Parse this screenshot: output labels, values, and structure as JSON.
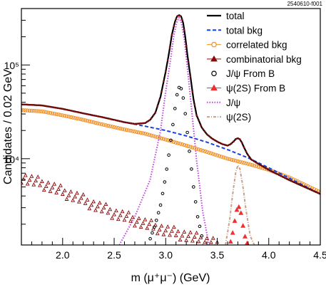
{
  "figure_code": "2540610-f001",
  "chart_data": {
    "type": "line",
    "xlabel": "m (μ⁺μ⁻) (GeV)",
    "ylabel": "Candidates / 0.02 GeV",
    "xlim": [
      1.6,
      4.5
    ],
    "ylim": [
      1200,
      400000
    ],
    "y_scale": "log",
    "x_ticks": [
      2.0,
      2.5,
      3.0,
      3.5,
      4.0,
      4.5
    ],
    "x_tick_labels": [
      "2.0",
      "2.5",
      "3.0",
      "3.5",
      "4.0",
      "4.5"
    ],
    "y_ticks": [
      10000,
      100000
    ],
    "y_tick_labels": [
      "10⁴",
      "10⁵"
    ],
    "legend_position": "top-right",
    "colors": {
      "total": "#000000",
      "total_bkg": "#1a3fe0",
      "correlated_bkg": "#f08c1e",
      "combinatorial_bkg": "#8b0a0a",
      "jpsi_from_b": "#000000",
      "psi2s_from_b": "#f03030",
      "jpsi": "#c040e0",
      "psi2s": "#c8a088"
    },
    "series": [
      {
        "key": "total",
        "name": "total",
        "style": "line",
        "x": [
          1.6,
          1.8,
          2.0,
          2.2,
          2.4,
          2.6,
          2.7,
          2.8,
          2.85,
          2.9,
          2.95,
          3.0,
          3.03,
          3.06,
          3.09,
          3.11,
          3.13,
          3.15,
          3.17,
          3.19,
          3.21,
          3.24,
          3.27,
          3.3,
          3.35,
          3.4,
          3.45,
          3.5,
          3.55,
          3.6,
          3.63,
          3.66,
          3.68,
          3.7,
          3.72,
          3.74,
          3.76,
          3.79,
          3.83,
          3.9,
          4.0,
          4.2,
          4.5
        ],
        "y": [
          38000,
          37000,
          34000,
          30500,
          27500,
          24500,
          23500,
          24000,
          26000,
          31000,
          46000,
          85000,
          130000,
          210000,
          290000,
          330000,
          340000,
          330000,
          280000,
          200000,
          130000,
          75000,
          43000,
          29000,
          21500,
          18200,
          16400,
          15200,
          14300,
          13800,
          14300,
          15300,
          16200,
          16500,
          16100,
          14800,
          13200,
          11300,
          9800,
          8800,
          7600,
          5900,
          4200
        ]
      },
      {
        "key": "total_bkg",
        "name": "total bkg",
        "style": "dashed",
        "x": [
          1.6,
          1.8,
          2.0,
          2.2,
          2.4,
          2.6,
          2.8,
          3.0,
          3.2,
          3.4,
          3.6,
          3.8,
          4.0,
          4.2,
          4.5
        ],
        "y": [
          38000,
          37000,
          34000,
          30500,
          27500,
          24500,
          22200,
          20000,
          17500,
          15000,
          12500,
          10200,
          8000,
          6200,
          4200
        ]
      },
      {
        "key": "correlated_bkg",
        "name": "correlated bkg",
        "style": "markers-open-circle",
        "x": [
          1.6,
          1.8,
          2.0,
          2.2,
          2.4,
          2.6,
          2.8,
          3.0,
          3.2,
          3.4,
          3.6,
          3.8,
          4.0,
          4.2,
          4.5
        ],
        "y": [
          33000,
          32000,
          29000,
          26000,
          23000,
          20500,
          18500,
          16000,
          13800,
          11800,
          10000,
          8800,
          7600,
          6300,
          4400
        ]
      },
      {
        "key": "combinatorial_bkg",
        "name": "combinatorial bkg",
        "style": "markers-triangle",
        "x": [
          1.6,
          1.7,
          1.8,
          1.9,
          2.0,
          2.1,
          2.2,
          2.3,
          2.4,
          2.5,
          2.6,
          2.7,
          2.8,
          2.9,
          3.0,
          3.1,
          3.2,
          3.3,
          3.4,
          3.5
        ],
        "y": [
          6300,
          5800,
          5400,
          4900,
          4400,
          4000,
          3600,
          3200,
          2900,
          2600,
          2400,
          2200,
          2000,
          1850,
          1700,
          1600,
          1500,
          1400,
          1300,
          1250
        ]
      },
      {
        "key": "jpsi_from_b",
        "name": "J/ψ From B",
        "style": "markers-small-open-circle",
        "x": [
          2.85,
          2.9,
          2.95,
          3.0,
          3.04,
          3.08,
          3.1,
          3.12,
          3.14,
          3.16,
          3.18,
          3.2,
          3.23,
          3.27,
          3.31,
          3.35
        ],
        "y": [
          1400,
          2000,
          3200,
          6500,
          13000,
          28000,
          42000,
          55000,
          60000,
          52000,
          38000,
          24000,
          12000,
          5000,
          2400,
          1500
        ]
      },
      {
        "key": "psi2s_from_b",
        "name": "ψ(2S) From B",
        "style": "markers-filled-triangle",
        "x": [
          3.63,
          3.66,
          3.68,
          3.7,
          3.72,
          3.74,
          3.76,
          3.79
        ],
        "y": [
          1300,
          1800,
          2600,
          3100,
          3000,
          2300,
          1600,
          1250
        ]
      },
      {
        "key": "jpsi",
        "name": "J/ψ",
        "style": "dotted",
        "x": [
          2.55,
          2.7,
          2.85,
          2.95,
          3.0,
          3.05,
          3.08,
          3.11,
          3.13,
          3.15,
          3.18,
          3.21,
          3.25,
          3.3,
          3.36,
          3.42
        ],
        "y": [
          1200,
          2400,
          6000,
          20000,
          52000,
          120000,
          210000,
          290000,
          320000,
          290000,
          190000,
          95000,
          35000,
          9500,
          2700,
          1200
        ]
      },
      {
        "key": "psi2s",
        "name": "ψ(2S)",
        "style": "dash-dot",
        "x": [
          3.58,
          3.62,
          3.65,
          3.68,
          3.7,
          3.72,
          3.75,
          3.78,
          3.82,
          3.86
        ],
        "y": [
          1200,
          2200,
          4200,
          7200,
          8500,
          7800,
          5000,
          2800,
          1500,
          1200
        ]
      }
    ]
  }
}
